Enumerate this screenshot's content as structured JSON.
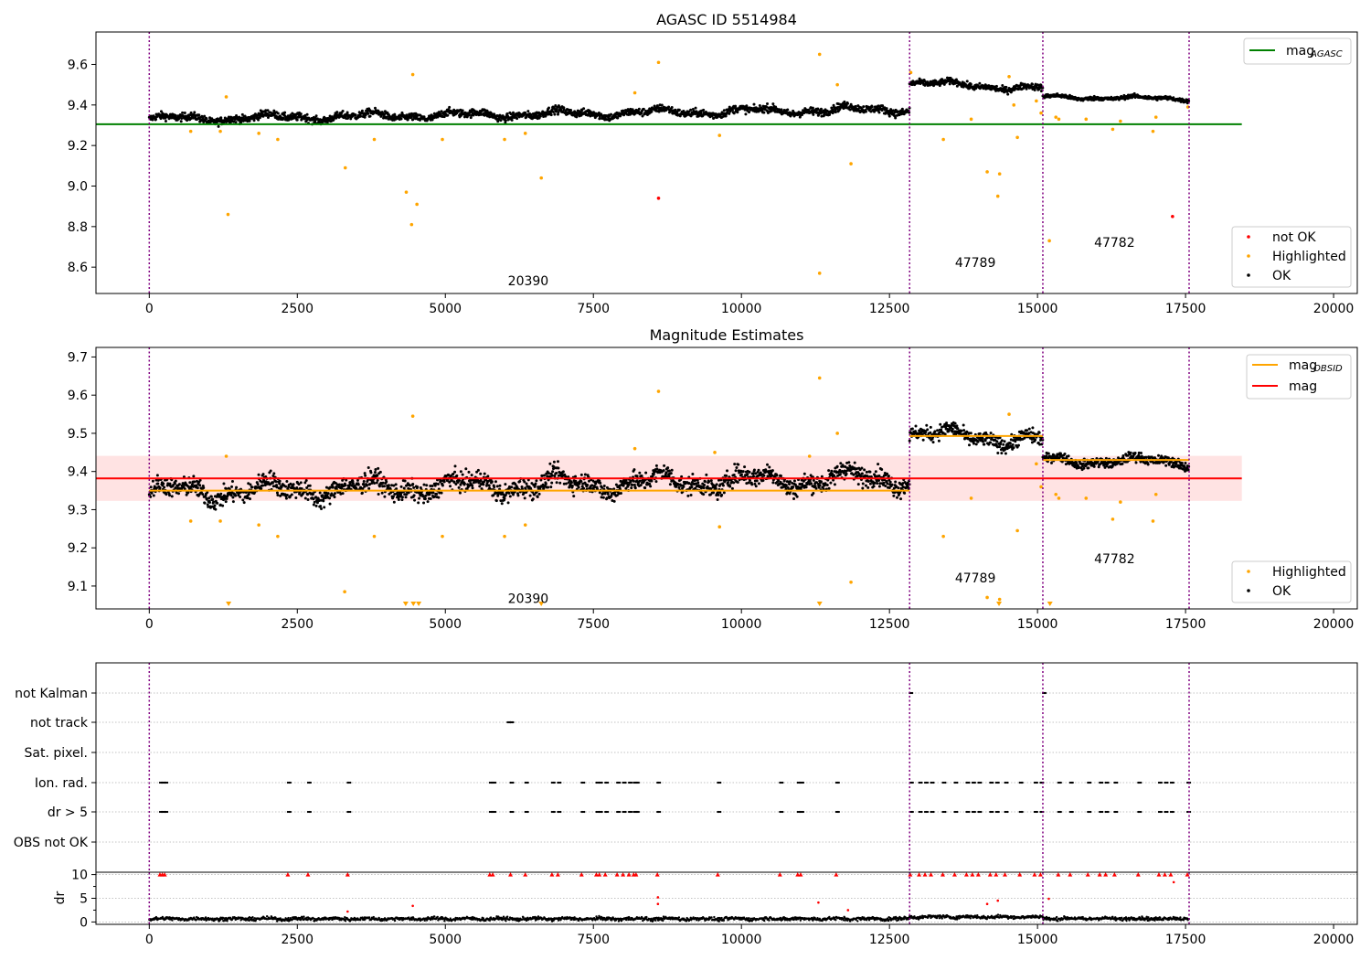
{
  "colors": {
    "ok": "#000000",
    "highlighted": "#ffa500",
    "not_ok": "#ff0000",
    "agasc_line": "#008000",
    "mag_line": "#ff0000",
    "obsid_line": "#ffa500",
    "band": "#ffcccc",
    "obs_boundary": "#800080",
    "grid": "#b0b0b0"
  },
  "chart_data": [
    {
      "type": "scatter",
      "title": "AGASC ID 5514984",
      "xlim": [
        -900,
        20400
      ],
      "ylim": [
        8.47,
        9.76
      ],
      "xticks": [
        0,
        2500,
        5000,
        7500,
        10000,
        12500,
        15000,
        17500,
        20000
      ],
      "yticks": [
        8.6,
        8.8,
        9.0,
        9.2,
        9.4,
        9.6
      ],
      "obs_boundaries": [
        0,
        12840,
        15090,
        17560
      ],
      "obs_labels": [
        {
          "text": "20390",
          "x": 6400,
          "y": 8.51
        },
        {
          "text": "47789",
          "x": 13950,
          "y": 8.6
        },
        {
          "text": "47782",
          "x": 16300,
          "y": 8.7
        }
      ],
      "lines": [
        {
          "name": "mag_AGASC",
          "y": 9.305,
          "x_range": [
            -900,
            18450
          ],
          "color": "#008000"
        }
      ],
      "ok_segments": [
        {
          "x_range": [
            0,
            12840
          ],
          "center_start": 9.33,
          "center_end": 9.38,
          "spread": 0.03
        },
        {
          "x_range": [
            12840,
            15090
          ],
          "center_start": 9.51,
          "center_end": 9.48,
          "spread": 0.025
        },
        {
          "x_range": [
            15090,
            17560
          ],
          "center_start": 9.44,
          "center_end": 9.43,
          "spread": 0.015
        }
      ],
      "highlighted": [
        [
          1300,
          9.44
        ],
        [
          1330,
          8.86
        ],
        [
          4450,
          9.55
        ],
        [
          4340,
          8.97
        ],
        [
          4520,
          8.91
        ],
        [
          4430,
          8.81
        ],
        [
          3310,
          9.09
        ],
        [
          6620,
          9.04
        ],
        [
          8600,
          9.61
        ],
        [
          11320,
          9.65
        ],
        [
          11850,
          9.11
        ],
        [
          11620,
          9.5
        ],
        [
          11320,
          8.57
        ],
        [
          8200,
          9.46
        ],
        [
          1850,
          9.26
        ],
        [
          2170,
          9.23
        ],
        [
          3800,
          9.23
        ],
        [
          4950,
          9.23
        ],
        [
          6000,
          9.23
        ],
        [
          6350,
          9.26
        ],
        [
          9630,
          9.25
        ],
        [
          13410,
          9.23
        ],
        [
          13880,
          9.33
        ],
        [
          14150,
          9.07
        ],
        [
          14330,
          8.95
        ],
        [
          14360,
          9.06
        ],
        [
          14660,
          9.24
        ],
        [
          15200,
          8.73
        ],
        [
          15310,
          9.34
        ],
        [
          15360,
          9.33
        ],
        [
          15820,
          9.33
        ],
        [
          16270,
          9.28
        ],
        [
          16400,
          9.32
        ],
        [
          16950,
          9.27
        ],
        [
          17000,
          9.34
        ],
        [
          17540,
          9.39
        ],
        [
          14520,
          9.54
        ],
        [
          14980,
          9.42
        ],
        [
          15060,
          9.36
        ],
        [
          14600,
          9.4
        ],
        [
          700,
          9.27
        ],
        [
          1200,
          9.27
        ],
        [
          12860,
          9.56
        ]
      ],
      "not_ok": [
        [
          8600,
          8.94
        ],
        [
          17280,
          8.85
        ]
      ],
      "legend_upper": {
        "items": [
          "mag"
        ],
        "subscript": "AGASC"
      },
      "legend_lower": {
        "items": [
          "not OK",
          "Highlighted",
          "OK"
        ]
      }
    },
    {
      "type": "scatter",
      "title": "Magnitude Estimates",
      "xlim": [
        -900,
        20400
      ],
      "ylim": [
        9.04,
        9.725
      ],
      "xticks": [
        0,
        2500,
        5000,
        7500,
        10000,
        12500,
        15000,
        17500,
        20000
      ],
      "yticks": [
        9.1,
        9.2,
        9.3,
        9.4,
        9.5,
        9.6,
        9.7
      ],
      "obs_boundaries": [
        0,
        12840,
        15090,
        17560
      ],
      "obs_labels": [
        {
          "text": "20390",
          "x": 6400,
          "y": 9.055
        },
        {
          "text": "47789",
          "x": 13950,
          "y": 9.11
        },
        {
          "text": "47782",
          "x": 16300,
          "y": 9.16
        }
      ],
      "band": {
        "y_range": [
          9.323,
          9.441
        ],
        "x_range": [
          -900,
          18450
        ]
      },
      "lines": [
        {
          "name": "mag",
          "y": 9.382,
          "x_range": [
            -900,
            18450
          ],
          "color": "#ff0000"
        }
      ],
      "obsid_steps": [
        {
          "x_range": [
            0,
            12840
          ],
          "y": 9.35
        },
        {
          "x_range": [
            12840,
            15090
          ],
          "y": 9.493
        },
        {
          "x_range": [
            15090,
            17560
          ],
          "y": 9.43
        }
      ],
      "ok_segments": [
        {
          "x_range": [
            0,
            12840
          ],
          "center_start": 9.345,
          "center_end": 9.385,
          "spread": 0.04
        },
        {
          "x_range": [
            12840,
            15090
          ],
          "center_start": 9.5,
          "center_end": 9.48,
          "spread": 0.03
        },
        {
          "x_range": [
            15090,
            17560
          ],
          "center_start": 9.43,
          "center_end": 9.425,
          "spread": 0.02
        }
      ],
      "highlighted": [
        [
          1300,
          9.44
        ],
        [
          4450,
          9.545
        ],
        [
          8600,
          9.61
        ],
        [
          11320,
          9.645
        ],
        [
          11850,
          9.11
        ],
        [
          11620,
          9.5
        ],
        [
          8200,
          9.46
        ],
        [
          1850,
          9.26
        ],
        [
          2170,
          9.23
        ],
        [
          3300,
          9.085
        ],
        [
          3800,
          9.23
        ],
        [
          4950,
          9.23
        ],
        [
          6000,
          9.23
        ],
        [
          6350,
          9.26
        ],
        [
          9630,
          9.255
        ],
        [
          13410,
          9.23
        ],
        [
          13880,
          9.33
        ],
        [
          14150,
          9.07
        ],
        [
          14360,
          9.065
        ],
        [
          14660,
          9.245
        ],
        [
          15310,
          9.34
        ],
        [
          15360,
          9.33
        ],
        [
          15820,
          9.33
        ],
        [
          16270,
          9.275
        ],
        [
          16400,
          9.32
        ],
        [
          16950,
          9.27
        ],
        [
          17000,
          9.34
        ],
        [
          14520,
          9.55
        ],
        [
          14980,
          9.42
        ],
        [
          15060,
          9.36
        ],
        [
          700,
          9.27
        ],
        [
          1200,
          9.27
        ],
        [
          9550,
          9.45
        ],
        [
          11150,
          9.44
        ]
      ],
      "clipped_low": [
        1340,
        4330,
        4460,
        4550,
        6620,
        11320,
        14350,
        15210
      ],
      "legend_upper": {
        "items": [
          "mag",
          "mag"
        ],
        "subscript": "OBSID"
      },
      "legend_lower": {
        "items": [
          "Highlighted",
          "OK"
        ]
      }
    },
    {
      "type": "scatter",
      "title": "",
      "xlim": [
        -900,
        20400
      ],
      "xticks": [
        0,
        2500,
        5000,
        7500,
        10000,
        12500,
        15000,
        17500,
        20000
      ],
      "flag_rows": [
        "not Kalman",
        "not track",
        "Sat. pixel.",
        "Ion. rad.",
        "dr > 5",
        "OBS not OK"
      ],
      "obs_boundaries": [
        0,
        12840,
        15090,
        17560
      ],
      "flag_events": {
        "not Kalman": [
          12840,
          15090
        ],
        "not track": [
          6050,
          6080,
          6100
        ],
        "Ion. rad.": [
          180,
          220,
          260,
          2340,
          2680,
          3350,
          5750,
          5800,
          6100,
          6350,
          6800,
          6900,
          7300,
          7550,
          7600,
          7700,
          7900,
          8000,
          8100,
          8180,
          8220,
          8580,
          9600,
          10650,
          10950,
          11000,
          11600,
          12850,
          13000,
          13100,
          13200,
          13400,
          13600,
          13800,
          13900,
          14000,
          14200,
          14300,
          14450,
          14700,
          14950,
          15050,
          15350,
          15550,
          15850,
          16050,
          16150,
          16300,
          16700,
          17050,
          17150,
          17250,
          17530
        ],
        "dr > 5": [
          180,
          220,
          260,
          2340,
          2680,
          3350,
          5750,
          5800,
          6100,
          6350,
          6800,
          6900,
          7300,
          7550,
          7600,
          7700,
          7900,
          8000,
          8100,
          8180,
          8220,
          8580,
          9600,
          10650,
          10950,
          11000,
          11600,
          12850,
          13000,
          13100,
          13200,
          13400,
          13600,
          13800,
          13900,
          14000,
          14200,
          14300,
          14450,
          14700,
          14950,
          15050,
          15350,
          15550,
          15850,
          16050,
          16150,
          16300,
          16700,
          17050,
          17150,
          17250,
          17530
        ]
      },
      "dr_panel": {
        "ylabel": "dr",
        "ylim": [
          -0.5,
          10.5
        ],
        "yticks": [
          0,
          5,
          10
        ],
        "clip_value": 10,
        "clipped_x": [
          180,
          220,
          260,
          2340,
          2680,
          3350,
          5750,
          5800,
          6100,
          6350,
          6800,
          6900,
          7300,
          7550,
          7600,
          7700,
          7900,
          8000,
          8100,
          8180,
          8220,
          8580,
          9600,
          10650,
          10950,
          11000,
          11600,
          12850,
          13000,
          13100,
          13200,
          13400,
          13600,
          13800,
          13900,
          14000,
          14200,
          14300,
          14450,
          14700,
          14950,
          15050,
          15350,
          15550,
          15850,
          16050,
          16150,
          16300,
          16700,
          17050,
          17150,
          17250,
          17530
        ],
        "outliers": [
          [
            4450,
            3.4
          ],
          [
            8590,
            5.2
          ],
          [
            8590,
            3.8
          ],
          [
            11300,
            4.1
          ],
          [
            14150,
            3.8
          ],
          [
            14330,
            4.5
          ],
          [
            15190,
            4.9
          ],
          [
            17300,
            8.4
          ],
          [
            3350,
            2.2
          ],
          [
            11800,
            2.5
          ]
        ]
      }
    }
  ]
}
